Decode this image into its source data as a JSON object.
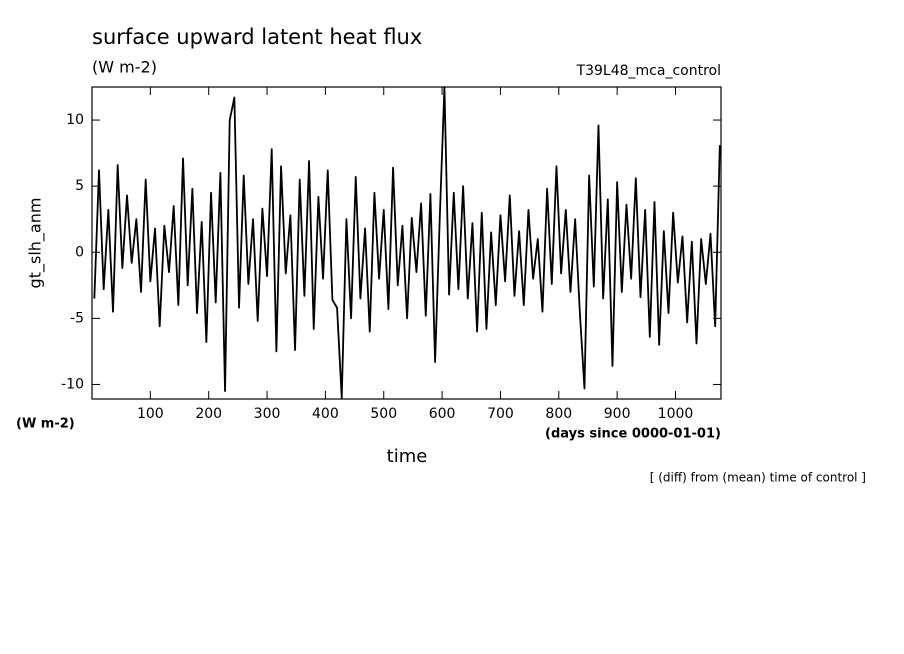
{
  "chart_data": {
    "type": "line",
    "title": "surface upward latent heat flux",
    "subtitle": "(W m-2)",
    "run_label": "T39L48_mca_control",
    "ylabel": "gt_slh_anm",
    "yunits": "(W m-2)",
    "xunits": "(days since 0000-01-01)",
    "xlabel": "time",
    "annotation": "[ (diff) from (mean) time of control ]",
    "xlim": [
      0,
      1078
    ],
    "ylim": [
      -11.1,
      12.5
    ],
    "xticks": [
      100,
      200,
      300,
      400,
      500,
      600,
      700,
      800,
      900,
      1000
    ],
    "yticks": [
      -10,
      -5,
      0,
      5,
      10
    ],
    "color": "#000000",
    "x": [
      4,
      12,
      20,
      28,
      36,
      44,
      52,
      60,
      68,
      76,
      84,
      92,
      100,
      108,
      116,
      124,
      132,
      140,
      148,
      156,
      164,
      172,
      180,
      188,
      196,
      204,
      212,
      220,
      228,
      236,
      244,
      252,
      260,
      268,
      276,
      284,
      292,
      300,
      308,
      316,
      324,
      332,
      340,
      348,
      356,
      364,
      372,
      380,
      388,
      396,
      404,
      412,
      420,
      428,
      436,
      444,
      452,
      460,
      468,
      476,
      484,
      492,
      500,
      508,
      516,
      524,
      532,
      540,
      548,
      556,
      564,
      572,
      580,
      588,
      596,
      604,
      612,
      620,
      628,
      636,
      644,
      652,
      660,
      668,
      676,
      684,
      692,
      700,
      708,
      716,
      724,
      732,
      740,
      748,
      756,
      764,
      772,
      780,
      788,
      796,
      804,
      812,
      820,
      828,
      836,
      844,
      852,
      860,
      868,
      876,
      884,
      892,
      900,
      908,
      916,
      924,
      932,
      940,
      948,
      956,
      964,
      972,
      980,
      988,
      996,
      1004,
      1012,
      1020,
      1028,
      1036,
      1044,
      1052,
      1060,
      1068,
      1076
    ],
    "values": [
      -3.5,
      6.2,
      -2.8,
      3.2,
      -4.5,
      6.6,
      -1.2,
      4.3,
      -0.8,
      2.5,
      -3.0,
      5.5,
      -2.2,
      1.8,
      -5.6,
      2.0,
      -1.5,
      3.5,
      -4.0,
      7.1,
      -2.5,
      4.8,
      -4.6,
      2.3,
      -6.8,
      4.5,
      -3.8,
      6.0,
      -10.5,
      10.0,
      11.7,
      -4.2,
      5.8,
      -2.4,
      2.5,
      -5.2,
      3.3,
      -1.8,
      7.8,
      -7.5,
      6.5,
      -1.6,
      2.8,
      -7.4,
      5.5,
      -3.3,
      6.9,
      -5.8,
      4.2,
      -2.0,
      6.2,
      -3.6,
      -4.2,
      -11.0,
      2.5,
      -5.0,
      5.7,
      -3.5,
      1.8,
      -6.0,
      4.5,
      -2.0,
      3.2,
      -4.3,
      6.4,
      -2.5,
      2.0,
      -5.0,
      2.6,
      -1.5,
      3.7,
      -4.8,
      4.4,
      -8.3,
      2.6,
      12.5,
      -3.2,
      4.5,
      -2.8,
      5.0,
      -3.5,
      2.2,
      -6.0,
      3.0,
      -5.8,
      1.5,
      -4.0,
      2.8,
      -2.2,
      4.3,
      -3.3,
      1.6,
      -4.0,
      3.2,
      -2.0,
      1.0,
      -4.5,
      4.8,
      -2.4,
      6.5,
      -1.6,
      3.2,
      -3.0,
      2.5,
      -4.5,
      -10.3,
      5.8,
      -2.6,
      9.6,
      -3.5,
      4.0,
      -8.6,
      5.3,
      -3.0,
      3.6,
      -2.0,
      5.6,
      -3.4,
      3.2,
      -6.4,
      3.8,
      -7.0,
      1.6,
      -4.6,
      3.0,
      -2.3,
      1.2,
      -5.3,
      0.8,
      -6.9,
      1.0,
      -2.4,
      1.4,
      -5.6,
      8.1
    ]
  }
}
